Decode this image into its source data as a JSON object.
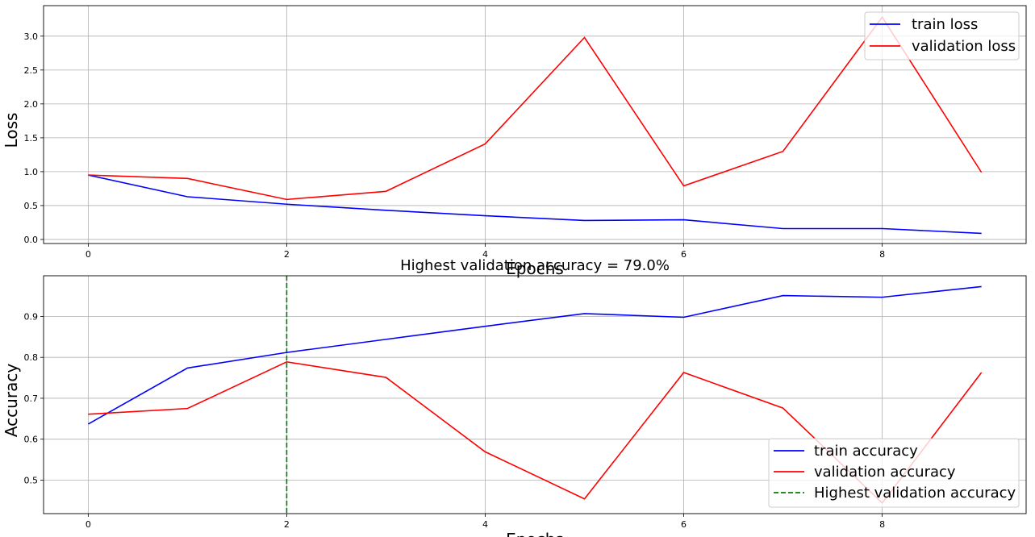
{
  "chart_data": [
    {
      "type": "line",
      "title": "",
      "xlabel": "Epochs",
      "ylabel": "Loss",
      "x": [
        0,
        1,
        2,
        3,
        4,
        5,
        6,
        7,
        8,
        9
      ],
      "xlim": [
        -0.45,
        9.45
      ],
      "ylim": [
        -0.06,
        3.45
      ],
      "xticks": [
        0,
        2,
        4,
        6,
        8
      ],
      "yticks": [
        0.0,
        0.5,
        1.0,
        1.5,
        2.0,
        2.5,
        3.0
      ],
      "ytick_labels": [
        "0.0",
        "0.5",
        "1.0",
        "1.5",
        "2.0",
        "2.5",
        "3.0"
      ],
      "grid": true,
      "legend_position": "top-right",
      "series": [
        {
          "name": "train loss",
          "color": "#0000ff",
          "dash": "solid",
          "values": [
            0.95,
            0.63,
            0.52,
            0.43,
            0.35,
            0.28,
            0.29,
            0.16,
            0.16,
            0.09
          ]
        },
        {
          "name": "validation loss",
          "color": "#ff0000",
          "dash": "solid",
          "values": [
            0.95,
            0.9,
            0.59,
            0.71,
            1.41,
            2.98,
            0.79,
            1.3,
            3.28,
            0.99
          ]
        }
      ]
    },
    {
      "type": "line",
      "title": "Highest validation accuracy = 79.0%",
      "xlabel": "Epochs",
      "ylabel": "Accuracy",
      "x": [
        0,
        1,
        2,
        3,
        4,
        5,
        6,
        7,
        8,
        9
      ],
      "xlim": [
        -0.45,
        9.45
      ],
      "ylim": [
        0.418,
        0.9995
      ],
      "xticks": [
        0,
        2,
        4,
        6,
        8
      ],
      "yticks": [
        0.5,
        0.6,
        0.7,
        0.8,
        0.9
      ],
      "ytick_labels": [
        "0.5",
        "0.6",
        "0.7",
        "0.8",
        "0.9"
      ],
      "grid": true,
      "legend_position": "lower-right",
      "series": [
        {
          "name": "train accuracy",
          "color": "#0000ff",
          "dash": "solid",
          "values": [
            0.637,
            0.774,
            0.812,
            0.844,
            0.876,
            0.907,
            0.898,
            0.951,
            0.947,
            0.973
          ]
        },
        {
          "name": "validation accuracy",
          "color": "#ff0000",
          "dash": "solid",
          "values": [
            0.661,
            0.675,
            0.789,
            0.751,
            0.569,
            0.454,
            0.763,
            0.676,
            0.444,
            0.763
          ]
        }
      ],
      "vline": {
        "name": "Highest validation accuracy",
        "x": 2,
        "color": "#008000",
        "dash": "dashed"
      }
    }
  ]
}
